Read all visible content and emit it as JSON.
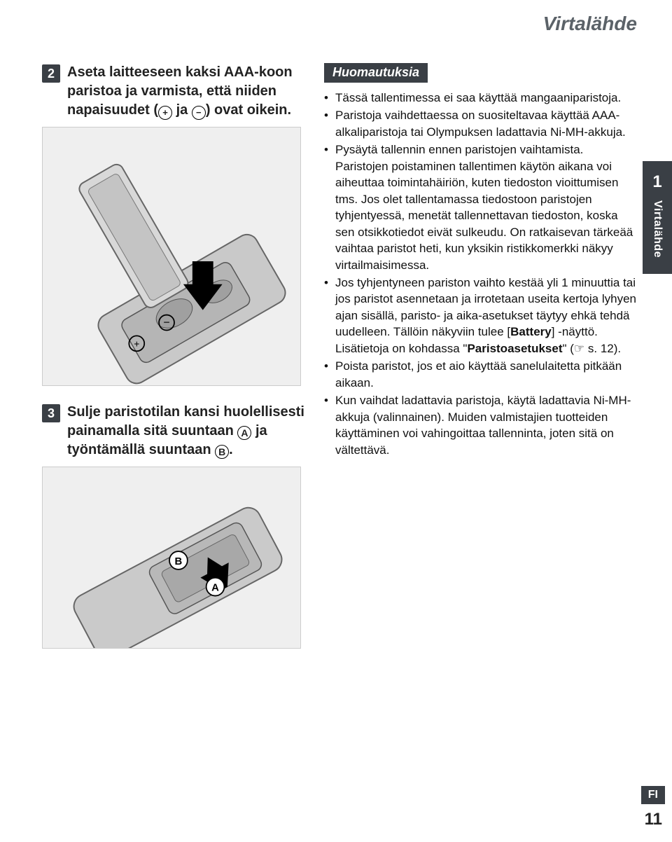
{
  "header": {
    "title": "Virtalähde"
  },
  "leftColumn": {
    "step2": {
      "number": "2",
      "text_before": "Aseta laitteeseen kaksi AAA-koon paristoa ja varmista, että niiden napaisuudet (",
      "plus": "+",
      "mid": " ja ",
      "minus": "−",
      "text_after": ") ovat oikein."
    },
    "step3": {
      "number": "3",
      "text_before": "Sulje paristotilan kansi huolellisesti painamalla sitä suuntaan ",
      "a": "A",
      "mid": " ja työntämällä suuntaan ",
      "b": "B",
      "text_after": "."
    },
    "labelA": "A",
    "labelB": "B"
  },
  "rightColumn": {
    "notesLabel": "Huomautuksia",
    "notes": [
      "Tässä tallentimessa ei saa käyttää mangaaniparistoja.",
      "Paristoja vaihdettaessa on suositeltavaa käyttää AAA-alkaliparistoja tai Olympuksen ladattavia Ni-MH-akkuja.",
      "Pysäytä tallennin ennen paristojen vaihtamista. Paristojen poistaminen tallentimen käytön aikana voi aiheuttaa toimintahäiriön, kuten tiedoston vioittumisen tms. Jos olet tallentamassa tiedostoon paristojen tyhjentyessä, menetät tallennettavan tiedoston, koska sen otsikkotiedot eivät sulkeudu. On ratkaisevan tärkeää vaihtaa paristot heti, kun yksikin ristikkomerkki näkyy virtailmaisimessa.",
      "Jos tyhjentyneen pariston vaihto kestää yli 1 minuuttia tai jos paristot asennetaan ja irrotetaan useita kertoja lyhyen ajan sisällä, paristo- ja aika-asetukset täytyy ehkä tehdä uudelleen. Tällöin näkyviin tulee [<b>Battery</b>] -näyttö. Lisätietoja on kohdassa \"<b>Paristoasetukset</b>\" (☞ s. 12).",
      "Poista paristot, jos et aio käyttää sanelulaitetta pitkään aikaan.",
      "Kun vaihdat ladattavia paristoja, käytä ladattavia Ni-MH-akkuja (valinnainen). Muiden valmistajien tuotteiden käyttäminen voi vahingoittaa tallenninta, joten sitä on vältettävä."
    ]
  },
  "sideTab": {
    "number": "1",
    "label": "Virtalähde"
  },
  "footer": {
    "lang": "FI",
    "page": "11"
  }
}
